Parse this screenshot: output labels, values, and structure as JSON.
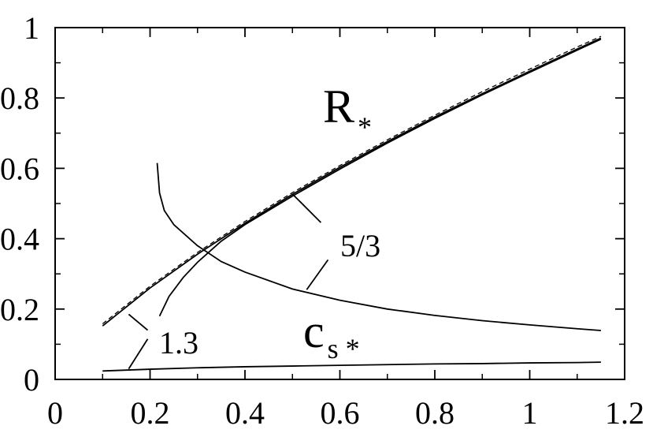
{
  "chart_data": {
    "type": "line",
    "title": "",
    "xlabel": "",
    "ylabel": "",
    "xlim": [
      0,
      1.2
    ],
    "ylim": [
      0,
      1
    ],
    "grid": false,
    "x_ticks": [
      "0",
      "0.2",
      "0.4",
      "0.6",
      "0.8",
      "1",
      "1.2"
    ],
    "y_ticks": [
      "0",
      "0.2",
      "0.4",
      "0.6",
      "0.8",
      "1"
    ],
    "series_labels": [
      {
        "main": "R",
        "sub": "*"
      },
      {
        "main": "c",
        "sub": "s *"
      }
    ],
    "annotations": [
      "5/3",
      "1.3"
    ],
    "series": [
      {
        "style": "dashed",
        "x": [
          0.1,
          0.2,
          0.3,
          0.4,
          0.5,
          0.6,
          0.7,
          0.8,
          0.9,
          1.0,
          1.1,
          1.15
        ],
        "y": [
          0.158,
          0.265,
          0.361,
          0.449,
          0.531,
          0.608,
          0.681,
          0.751,
          0.818,
          0.882,
          0.945,
          0.975
        ]
      },
      {
        "style": "solid",
        "x": [
          0.1,
          0.2,
          0.3,
          0.4,
          0.5,
          0.6,
          0.7,
          0.8,
          0.9,
          1.0,
          1.1,
          1.15
        ],
        "y": [
          0.152,
          0.26,
          0.356,
          0.444,
          0.526,
          0.603,
          0.676,
          0.746,
          0.812,
          0.876,
          0.939,
          0.97
        ]
      },
      {
        "style": "solid",
        "x": [
          0.22,
          0.24,
          0.27,
          0.3,
          0.35,
          0.4,
          0.5,
          0.6,
          0.7,
          0.8,
          0.9,
          1.0,
          1.1,
          1.15
        ],
        "y": [
          0.18,
          0.236,
          0.29,
          0.333,
          0.393,
          0.44,
          0.521,
          0.598,
          0.672,
          0.742,
          0.809,
          0.873,
          0.936,
          0.967
        ]
      },
      {
        "style": "solid",
        "x": [
          0.215,
          0.22,
          0.23,
          0.25,
          0.3,
          0.35,
          0.4,
          0.5,
          0.6,
          0.7,
          0.8,
          0.9,
          1.0,
          1.1,
          1.15
        ],
        "y": [
          0.615,
          0.53,
          0.48,
          0.44,
          0.38,
          0.335,
          0.305,
          0.257,
          0.225,
          0.2,
          0.182,
          0.167,
          0.155,
          0.144,
          0.139
        ]
      },
      {
        "style": "solid",
        "x": [
          0.1,
          0.2,
          0.3,
          0.4,
          0.5,
          0.6,
          0.7,
          0.8,
          0.9,
          1.0,
          1.1,
          1.15
        ],
        "y": [
          0.024,
          0.029,
          0.033,
          0.036,
          0.038,
          0.04,
          0.042,
          0.044,
          0.045,
          0.047,
          0.048,
          0.049
        ]
      }
    ]
  }
}
